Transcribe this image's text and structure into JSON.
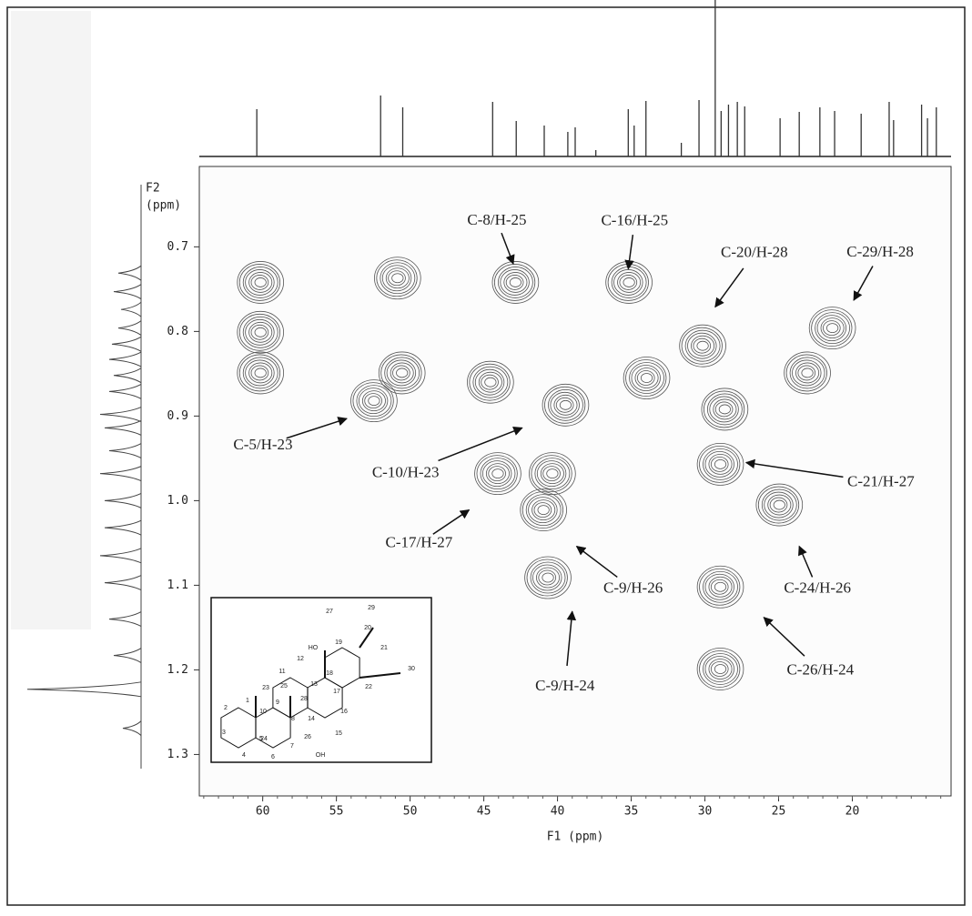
{
  "chart_data": {
    "type": "contour",
    "x_label": "F1 (ppm)",
    "y_label": [
      "F2",
      "(ppm)"
    ],
    "xlim": [
      64.3,
      13.3
    ],
    "xticks": [
      60,
      55,
      50,
      45,
      40,
      35,
      30,
      25,
      20
    ],
    "ylim": [
      0.605,
      1.349
    ],
    "yticks": [
      0.7,
      0.8,
      0.9,
      {
        "value": 1,
        "label": "1.0"
      },
      1.1,
      1.2,
      1.3
    ],
    "color": "#555555",
    "peaks": {
      "x": [
        60.2,
        60.2,
        60.2,
        50.9,
        50.6,
        52.5,
        44.6,
        42.9,
        35.2,
        39.5,
        44.1,
        40.4,
        41.0,
        40.7,
        34.0,
        30.2,
        28.7,
        21.4,
        23.1,
        29.0,
        25.0,
        29.0,
        29.0
      ],
      "y": [
        0.742,
        0.801,
        0.849,
        0.737,
        0.849,
        0.882,
        0.86,
        0.742,
        0.742,
        0.887,
        0.968,
        0.968,
        1.011,
        1.091,
        0.855,
        0.817,
        0.892,
        0.796,
        0.849,
        0.957,
        1.005,
        1.102,
        1.199
      ]
    },
    "f1_spectrum": {
      "x": [
        60.4,
        52.0,
        50.5,
        44.4,
        42.8,
        40.9,
        39.3,
        38.8,
        37.4,
        35.2,
        34.8,
        34.0,
        31.6,
        30.4,
        29.3,
        28.9,
        28.4,
        27.8,
        27.3,
        24.9,
        23.6,
        22.2,
        21.2,
        19.4,
        17.5,
        17.2,
        15.3,
        14.9,
        14.3
      ],
      "values": [
        52,
        67,
        54,
        60,
        39,
        34,
        27,
        32,
        7,
        52,
        34,
        61,
        15,
        62,
        172,
        50,
        57,
        60,
        55,
        42,
        49,
        54,
        50,
        47,
        60,
        40,
        57,
        42,
        54
      ]
    },
    "f2_spectrum": {
      "x": [
        0.731,
        0.753,
        0.774,
        0.796,
        0.815,
        0.833,
        0.852,
        0.871,
        0.898,
        0.914,
        0.941,
        0.968,
        1.0,
        1.032,
        1.065,
        1.097,
        1.14,
        1.183,
        1.223,
        1.269
      ],
      "values": [
        25,
        30,
        22,
        25,
        32,
        35,
        30,
        35,
        45,
        40,
        35,
        45,
        40,
        40,
        45,
        40,
        35,
        30,
        125,
        20
      ]
    },
    "annotations": [
      {
        "text": "C-8/H-25",
        "x": 43.0,
        "y": 0.72
      },
      {
        "text": "C-16/H-25",
        "x": 35.2,
        "y": 0.726
      },
      {
        "text": "C-20/H-28",
        "x": 29.3,
        "y": 0.771
      },
      {
        "text": "C-29/H-28",
        "x": 19.9,
        "y": 0.763
      },
      {
        "text": "C-5/H-23",
        "x": 54.3,
        "y": 0.903
      },
      {
        "text": "C-10/H-23",
        "x": 42.4,
        "y": 0.914
      },
      {
        "text": "C-21/H-27",
        "x": 27.2,
        "y": 0.955
      },
      {
        "text": "C-17/H-27",
        "x": 46.0,
        "y": 1.011
      },
      {
        "text": "C-9/H-26",
        "x": 38.7,
        "y": 1.054
      },
      {
        "text": "C-24/H-26",
        "x": 23.6,
        "y": 1.054
      },
      {
        "text": "C-9/H-24",
        "x": 39.0,
        "y": 1.131
      },
      {
        "text": "C-26/H-24",
        "x": 26.0,
        "y": 1.138
      }
    ],
    "structure": {
      "labels": [
        "27",
        "29",
        "19",
        "20",
        "21",
        "12",
        "11",
        "18",
        "13",
        "22",
        "30",
        "HO",
        "1",
        "2",
        "3",
        "4",
        "5",
        "6",
        "7",
        "8",
        "9",
        "10",
        "14",
        "15",
        "16",
        "17",
        "23",
        "24",
        "25",
        "26",
        "28",
        "OH"
      ]
    }
  }
}
